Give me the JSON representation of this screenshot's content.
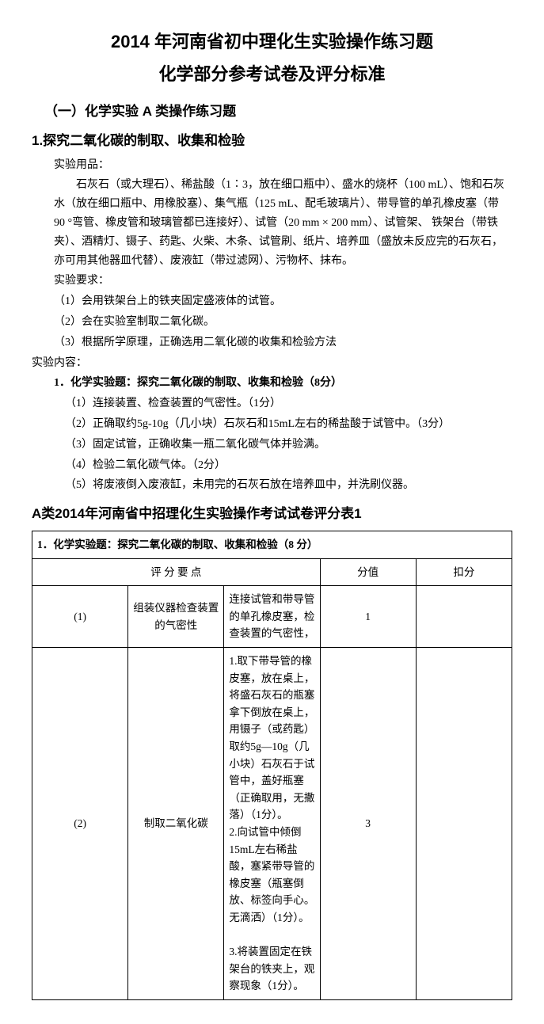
{
  "titles": {
    "line1": "2014 年河南省初中理化生实验操作练习题",
    "line2": "化学部分参考试卷及评分标准"
  },
  "sectionA": "（一）化学实验 A 类操作练习题",
  "topic": "1.探究二氧化碳的制取、收集和检验",
  "supplies": {
    "label": "实验用品：",
    "text": "石灰石（或大理石）、稀盐酸（1∶3，放在细口瓶中）、盛水的烧杯（100 mL）、饱和石灰水（放在细口瓶中、用橡胶塞）、集气瓶（125 mL、配毛玻璃片）、带导管的单孔橡皮塞（带 90 °弯管、橡皮管和玻璃管都已连接好）、试管（20 mm × 200 mm）、试管架、 铁架台（带铁夹）、酒精灯、镊子、药匙、火柴、木条、试管刷、纸片、培养皿（盛放未反应完的石灰石，亦可用其他器皿代替）、废液缸（带过滤网）、污物杯、抹布。"
  },
  "requirements": {
    "label": "实验要求：",
    "items": [
      "（1）会用铁架台上的铁夹固定盛液体的试管。",
      "（2）会在实验室制取二氧化碳。",
      "（3）根据所学原理，正确选用二氧化碳的收集和检验方法"
    ]
  },
  "content": {
    "label": "实验内容：",
    "title": "1．化学实验题：探究二氧化碳的制取、收集和检验（8分）",
    "items": [
      "（1）连接装置、检查装置的气密性。（1分）",
      "（2）正确取约5g-10g（几小块）石灰石和15mL左右的稀盐酸于试管中。（3分）",
      "（3）固定试管，正确收集一瓶二氧化碳气体并验满。",
      "（4）检验二氧化碳气体。（2分）",
      "（5）将废液倒入废液缸，未用完的石灰石放在培养皿中，并洗刷仪器。"
    ]
  },
  "tableCaption": "A类2014年河南省中招理化生实验操作考试试卷评分表1",
  "table": {
    "headerRow": "1．化学实验题：探究二氧化碳的制取、收集和检验（8 分）",
    "cols": {
      "criteria": "评 分 要 点",
      "score": "分值",
      "deduct": "扣分"
    },
    "rows": [
      {
        "idx": "(1)",
        "name": "组装仪器检查装置的气密性",
        "criteria": "连接试管和带导管的单孔橡皮塞，检查装置的气密性，",
        "score": "1"
      },
      {
        "idx": "(2)",
        "name": "制取二氧化碳",
        "criteria": "1.取下带导管的橡皮塞，放在桌上，将盛石灰石的瓶塞拿下倒放在桌上，用镊子（或药匙）取约5g—10g（几小块）石灰石于试管中，盖好瓶塞（正确取用，无撒落）（1分）。\n2.向试管中倾倒15mL左右稀盐酸，塞紧带导管的橡皮塞（瓶塞倒放、标签向手心。无滴洒）（1分）。\n\n3.将装置固定在铁架台的铁夹上，观察现象（1分）。",
        "score": "3"
      }
    ]
  }
}
